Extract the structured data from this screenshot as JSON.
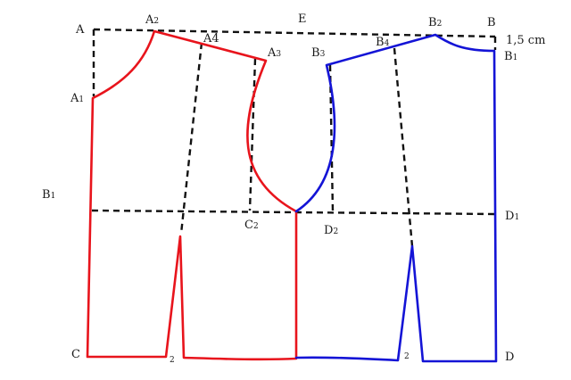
{
  "diagram": {
    "colors": {
      "front": "#e8141c",
      "back": "#1414d6",
      "construction": "#111111"
    },
    "labels": {
      "A": {
        "main": "A",
        "sub": ""
      },
      "A2": {
        "main": "A",
        "sub": "2"
      },
      "E": {
        "main": "E",
        "sub": ""
      },
      "B2": {
        "main": "B",
        "sub": "2"
      },
      "B": {
        "main": "B",
        "sub": ""
      },
      "cm": {
        "main": "1,5 cm",
        "sub": ""
      },
      "A4": {
        "main": "A4",
        "sub": ""
      },
      "A3": {
        "main": "A",
        "sub": "3"
      },
      "B3": {
        "main": "B",
        "sub": "3"
      },
      "B4": {
        "main": "B",
        "sub": "4"
      },
      "B1r": {
        "main": "B",
        "sub": "1"
      },
      "A1": {
        "main": "A",
        "sub": "1"
      },
      "B1l": {
        "main": "B",
        "sub": "1"
      },
      "C2": {
        "main": "C",
        "sub": "2"
      },
      "D2": {
        "main": "D",
        "sub": "2"
      },
      "D1": {
        "main": "D",
        "sub": "1"
      },
      "C": {
        "main": "C",
        "sub": ""
      },
      "n2a": {
        "main": "2",
        "sub": ""
      },
      "n2b": {
        "main": "2",
        "sub": ""
      },
      "D": {
        "main": "D",
        "sub": ""
      }
    }
  }
}
